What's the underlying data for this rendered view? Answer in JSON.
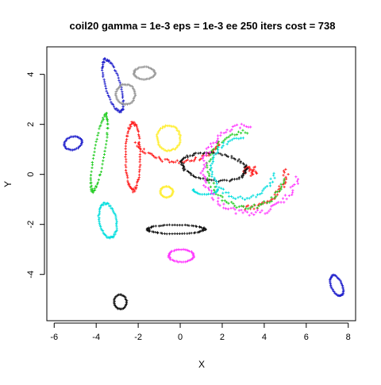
{
  "chart_data": {
    "type": "scatter",
    "title": "coil20 gamma = 1e-3 eps = 1e-3 ee 250 iters cost = 738",
    "xlabel": "X",
    "ylabel": "Y",
    "xlim": [
      -6.35,
      8.35
    ],
    "ylim": [
      -5.85,
      5.1
    ],
    "x_ticks": [
      -6,
      -4,
      -2,
      0,
      2,
      4,
      6,
      8
    ],
    "y_ticks": [
      -4,
      -2,
      0,
      2,
      4
    ],
    "grid": false,
    "legend": "none",
    "series": [
      {
        "color": "#2222cc",
        "clusters": [
          {
            "shape": "ring",
            "cx": -3.2,
            "cy": 3.55,
            "rx": 0.35,
            "ry": 1.1,
            "angle": 20,
            "n": 70
          },
          {
            "shape": "ring",
            "cx": -5.1,
            "cy": 1.25,
            "rx": 0.42,
            "ry": 0.26,
            "angle": 10,
            "n": 40
          },
          {
            "shape": "ring",
            "cx": 7.45,
            "cy": -4.45,
            "rx": 0.25,
            "ry": 0.45,
            "angle": 30,
            "n": 45
          }
        ]
      },
      {
        "color": "#999999",
        "clusters": [
          {
            "shape": "ring",
            "cx": -1.7,
            "cy": 4.05,
            "rx": 0.5,
            "ry": 0.25,
            "angle": 0,
            "n": 45
          },
          {
            "shape": "ring",
            "cx": -2.6,
            "cy": 3.2,
            "rx": 0.45,
            "ry": 0.4,
            "angle": 0,
            "n": 50
          }
        ]
      },
      {
        "color": "#ff2222",
        "clusters": [
          {
            "shape": "arc",
            "cx": -0.1,
            "cy": 1.7,
            "rx": 2.1,
            "ry": 1.2,
            "start": 200,
            "end": 340,
            "n": 60
          },
          {
            "shape": "ring",
            "cx": -2.25,
            "cy": 0.7,
            "rx": 0.35,
            "ry": 1.35,
            "angle": 0,
            "n": 80
          },
          {
            "shape": "blob",
            "cx": 3.35,
            "cy": 0.15,
            "rx": 0.35,
            "ry": 0.22,
            "n": 30
          },
          {
            "shape": "arc",
            "cx": 3.0,
            "cy": 0.2,
            "rx": 2.05,
            "ry": 1.55,
            "start": 270,
            "end": 360,
            "n": 40
          }
        ]
      },
      {
        "color": "#22cc22",
        "clusters": [
          {
            "shape": "ring",
            "cx": -3.85,
            "cy": 0.85,
            "rx": 0.25,
            "ry": 1.55,
            "angle": -12,
            "n": 70
          },
          {
            "shape": "arc",
            "cx": 3.2,
            "cy": 0.2,
            "rx": 1.85,
            "ry": 1.5,
            "start": 90,
            "end": 345,
            "n": 80
          }
        ]
      },
      {
        "color": "#ffee33",
        "clusters": [
          {
            "shape": "ring",
            "cx": -0.55,
            "cy": 1.45,
            "rx": 0.55,
            "ry": 0.5,
            "angle": 0,
            "n": 55
          },
          {
            "shape": "ring",
            "cx": -0.65,
            "cy": -0.7,
            "rx": 0.3,
            "ry": 0.22,
            "angle": 0,
            "n": 35
          }
        ]
      },
      {
        "color": "#111111",
        "clusters": [
          {
            "shape": "ring",
            "cx": 1.6,
            "cy": 0.3,
            "rx": 1.55,
            "ry": 0.55,
            "angle": -5,
            "n": 90
          },
          {
            "shape": "ring",
            "cx": -0.2,
            "cy": -2.2,
            "rx": 1.35,
            "ry": 0.18,
            "angle": 0,
            "n": 70
          },
          {
            "shape": "ring",
            "cx": -2.85,
            "cy": -5.1,
            "rx": 0.3,
            "ry": 0.28,
            "angle": 0,
            "n": 35
          }
        ]
      },
      {
        "color": "#00dddd",
        "clusters": [
          {
            "shape": "ring",
            "cx": -3.45,
            "cy": -1.85,
            "rx": 0.4,
            "ry": 0.7,
            "angle": 15,
            "n": 60
          },
          {
            "shape": "arc",
            "cx": 3.0,
            "cy": 0.25,
            "rx": 1.5,
            "ry": 1.2,
            "start": 90,
            "end": 350,
            "n": 65
          },
          {
            "shape": "arc",
            "cx": 1.2,
            "cy": -0.6,
            "rx": 0.6,
            "ry": 0.2,
            "start": 180,
            "end": 360,
            "n": 20
          }
        ]
      },
      {
        "color": "#ff33ff",
        "clusters": [
          {
            "shape": "arc",
            "cx": 3.35,
            "cy": 0.2,
            "rx": 2.25,
            "ry": 1.75,
            "start": 90,
            "end": 350,
            "n": 100
          },
          {
            "shape": "ring",
            "cx": 0.05,
            "cy": -3.25,
            "rx": 0.6,
            "ry": 0.25,
            "angle": 0,
            "n": 45
          }
        ]
      }
    ]
  }
}
